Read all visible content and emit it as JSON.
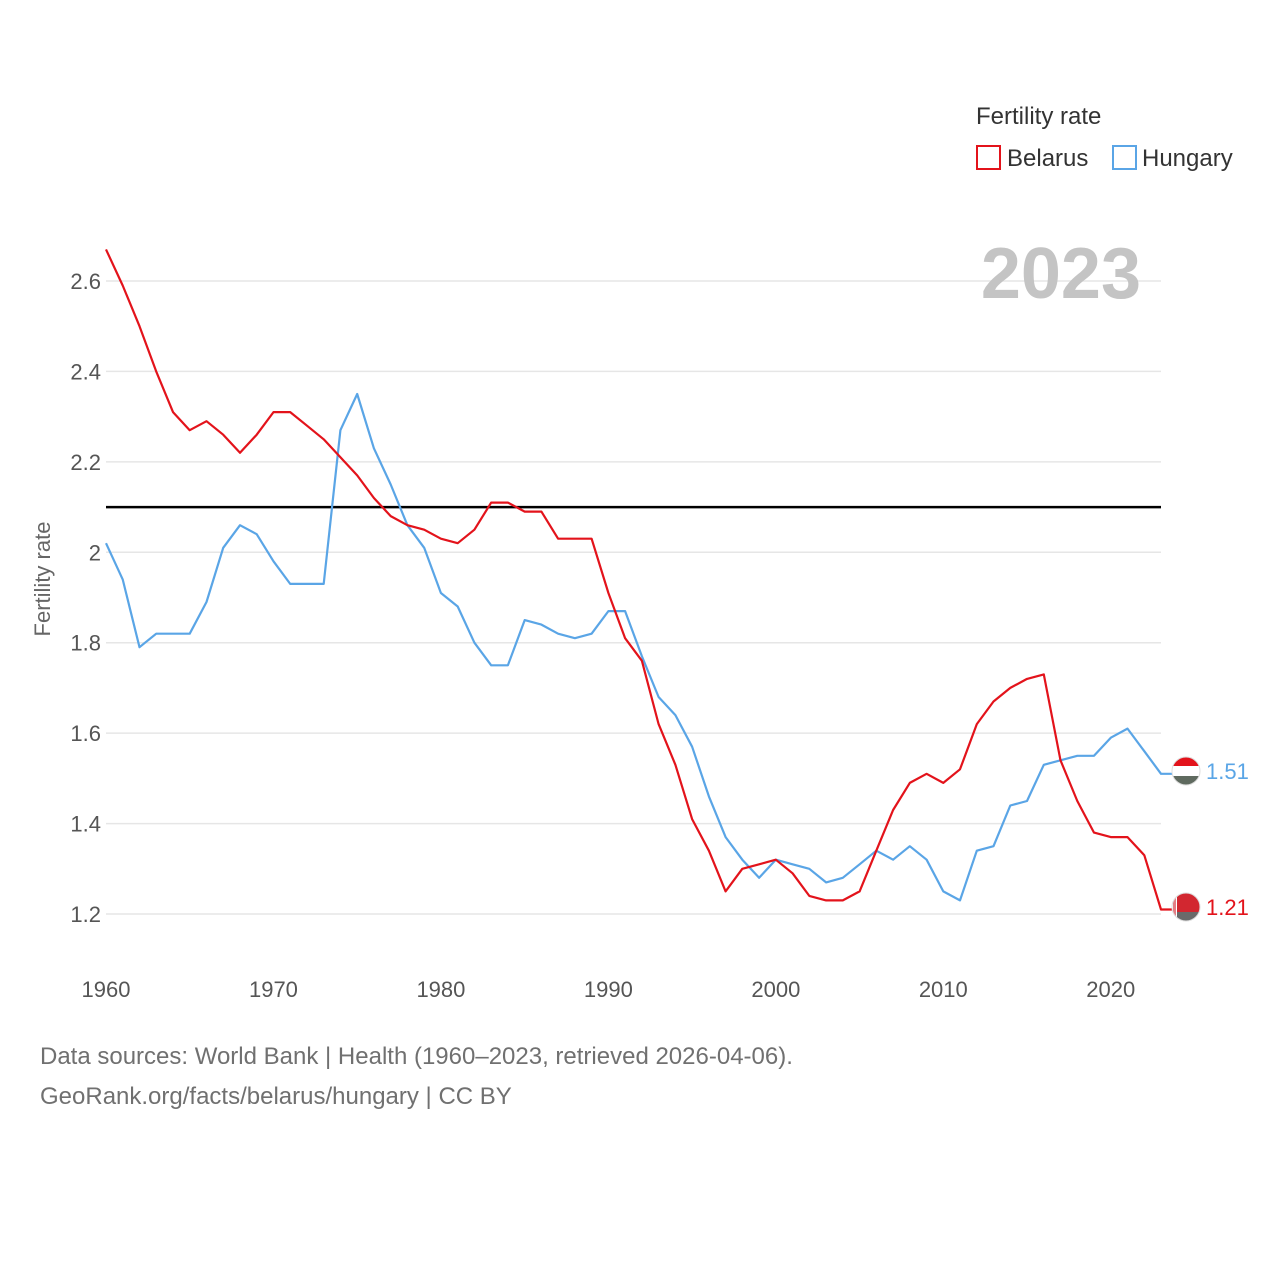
{
  "chart_data": {
    "type": "line",
    "title": "Fertility rate",
    "current_year": "2023",
    "ylabel": "Fertility rate",
    "xlabel": "",
    "xlim": [
      1960,
      2023
    ],
    "ylim": [
      1.1,
      2.75
    ],
    "x_ticks": [
      1960,
      1970,
      1980,
      1990,
      2000,
      2010,
      2020
    ],
    "y_ticks": [
      1.2,
      1.4,
      1.6,
      1.8,
      2,
      2.2,
      2.4,
      2.6
    ],
    "reference_line": 2.1,
    "legend": {
      "title": "Fertility rate",
      "position": "top-right"
    },
    "x": [
      1960,
      1961,
      1962,
      1963,
      1964,
      1965,
      1966,
      1967,
      1968,
      1969,
      1970,
      1971,
      1972,
      1973,
      1974,
      1975,
      1976,
      1977,
      1978,
      1979,
      1980,
      1981,
      1982,
      1983,
      1984,
      1985,
      1986,
      1987,
      1988,
      1989,
      1990,
      1991,
      1992,
      1993,
      1994,
      1995,
      1996,
      1997,
      1998,
      1999,
      2000,
      2001,
      2002,
      2003,
      2004,
      2005,
      2006,
      2007,
      2008,
      2009,
      2010,
      2011,
      2012,
      2013,
      2014,
      2015,
      2016,
      2017,
      2018,
      2019,
      2020,
      2021,
      2022,
      2023
    ],
    "series": [
      {
        "name": "Belarus",
        "color": "#e3131b",
        "end_label": "1.21",
        "values": [
          2.67,
          2.59,
          2.5,
          2.4,
          2.31,
          2.27,
          2.29,
          2.26,
          2.22,
          2.26,
          2.31,
          2.31,
          2.28,
          2.25,
          2.21,
          2.17,
          2.12,
          2.08,
          2.06,
          2.05,
          2.03,
          2.02,
          2.05,
          2.11,
          2.11,
          2.09,
          2.09,
          2.03,
          2.03,
          2.03,
          1.91,
          1.81,
          1.76,
          1.62,
          1.53,
          1.41,
          1.34,
          1.25,
          1.3,
          1.31,
          1.32,
          1.29,
          1.24,
          1.23,
          1.23,
          1.25,
          1.34,
          1.43,
          1.49,
          1.51,
          1.49,
          1.52,
          1.62,
          1.67,
          1.7,
          1.72,
          1.73,
          1.54,
          1.45,
          1.38,
          1.37,
          1.37,
          1.33,
          1.21
        ]
      },
      {
        "name": "Hungary",
        "color": "#5aa5e6",
        "end_label": "1.51",
        "values": [
          2.02,
          1.94,
          1.79,
          1.82,
          1.82,
          1.82,
          1.89,
          2.01,
          2.06,
          2.04,
          1.98,
          1.93,
          1.93,
          1.93,
          2.27,
          2.35,
          2.23,
          2.15,
          2.06,
          2.01,
          1.91,
          1.88,
          1.8,
          1.75,
          1.75,
          1.85,
          1.84,
          1.82,
          1.81,
          1.82,
          1.87,
          1.87,
          1.77,
          1.68,
          1.64,
          1.57,
          1.46,
          1.37,
          1.32,
          1.28,
          1.32,
          1.31,
          1.3,
          1.27,
          1.28,
          1.31,
          1.34,
          1.32,
          1.35,
          1.32,
          1.25,
          1.23,
          1.34,
          1.35,
          1.44,
          1.45,
          1.53,
          1.54,
          1.55,
          1.55,
          1.59,
          1.61,
          1.56,
          1.51
        ]
      }
    ]
  },
  "footer": {
    "line1": "Data sources: World Bank | Health (1960–2023, retrieved 2026-04-06).",
    "line2": "GeoRank.org/facts/belarus/hungary | CC BY"
  }
}
